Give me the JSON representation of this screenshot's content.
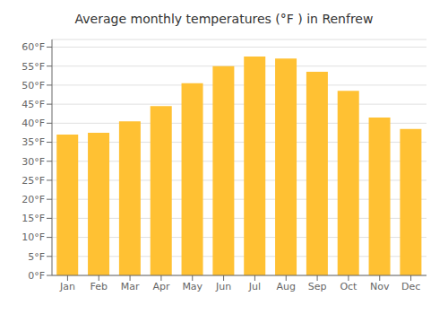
{
  "chart_data": {
    "type": "bar",
    "title": "Average monthly temperatures (°F ) in Renfrew",
    "categories": [
      "Jan",
      "Feb",
      "Mar",
      "Apr",
      "May",
      "Jun",
      "Jul",
      "Aug",
      "Sep",
      "Oct",
      "Nov",
      "Dec"
    ],
    "values": [
      37,
      37.5,
      40.5,
      44.5,
      50.5,
      55,
      57.5,
      57,
      53.5,
      48.5,
      41.5,
      38.5
    ],
    "color": "#FFC133",
    "ylim": [
      0,
      62
    ],
    "yticks": [
      {
        "value": 0,
        "label": "0°F"
      },
      {
        "value": 5,
        "label": "5°F"
      },
      {
        "value": 10,
        "label": "10°F"
      },
      {
        "value": 15,
        "label": "15°F"
      },
      {
        "value": 20,
        "label": "20°F"
      },
      {
        "value": 25,
        "label": "25°F"
      },
      {
        "value": 30,
        "label": "30°F"
      },
      {
        "value": 35,
        "label": "35°F"
      },
      {
        "value": 40,
        "label": "40°F"
      },
      {
        "value": 45,
        "label": "45°F"
      },
      {
        "value": 50,
        "label": "50°F"
      },
      {
        "value": 55,
        "label": "55°F"
      },
      {
        "value": 60,
        "label": "60°F"
      }
    ],
    "grid": true
  }
}
